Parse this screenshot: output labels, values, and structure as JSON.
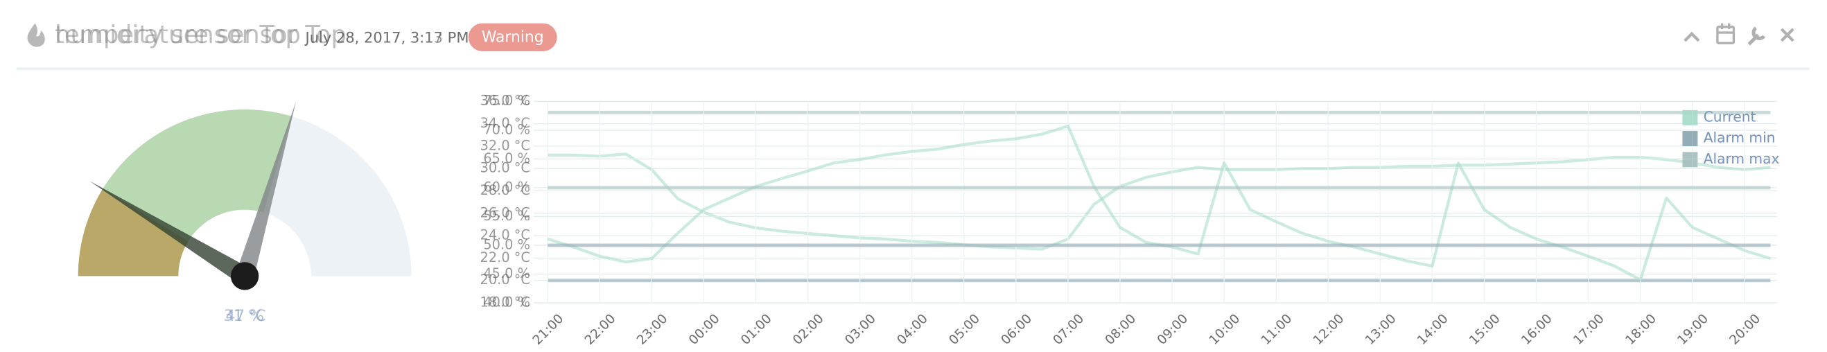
{
  "header": {
    "titles": [
      "temperature sensor Top",
      "humidity sensor Top"
    ],
    "timestamps": [
      "July 28, 2017, 3:17 PM",
      "July 28, 2017, 3:13 PM"
    ],
    "status": "Warning"
  },
  "chart_data": [
    {
      "type": "gauge",
      "values": [
        31
      ],
      "value_labels": [
        "31 °C"
      ],
      "ylim": [
        18,
        40
      ],
      "color": "#b6d7ae",
      "background_color": "#edf2f6",
      "needle_color": "#7f8587"
    },
    {
      "type": "gauge",
      "values": [
        47
      ],
      "value_labels": [
        "47 %"
      ],
      "ylim": [
        40,
        80
      ],
      "color": "#b8a563",
      "background_color": "#edf2f6",
      "needle_color": "#324232"
    },
    {
      "type": "line",
      "categories": [
        "21:00",
        null,
        "22:00",
        null,
        "23:00",
        null,
        "00:00",
        null,
        "01:00",
        null,
        "02:00",
        null,
        "03:00",
        null,
        "04:00",
        null,
        "05:00",
        null,
        "06:00",
        null,
        "07:00",
        null,
        "08:00",
        null,
        "09:00",
        null,
        "10:00",
        null,
        "11:00",
        null,
        "12:00",
        null,
        "13:00",
        null,
        "14:00",
        null,
        "15:00",
        null,
        "16:00",
        null,
        "17:00",
        null,
        "18:00",
        null,
        "19:00",
        null,
        "20:00",
        null
      ],
      "series": [
        {
          "name": "Current",
          "color": "#a9dccb",
          "values": [
            31.2,
            31.2,
            31.1,
            31.3,
            29.9,
            27.3,
            26.1,
            25.2,
            24.7,
            24.4,
            24.2,
            24.0,
            23.8,
            23.7,
            23.5,
            23.4,
            23.2,
            23.0,
            22.9,
            22.8,
            23.7,
            26.8,
            28.4,
            29.2,
            29.7,
            30.1,
            29.9,
            29.9,
            29.9,
            30.0,
            30.0,
            30.1,
            30.1,
            30.2,
            30.2,
            30.3,
            30.3,
            30.4,
            30.5,
            30.6,
            30.8,
            31.0,
            31.0,
            30.8,
            30.5,
            30.1,
            29.9,
            30.1
          ]
        },
        {
          "name": "Alarm min",
          "color": "#8fa9b2",
          "values": [
            20,
            20,
            20,
            20,
            20,
            20,
            20,
            20,
            20,
            20,
            20,
            20,
            20,
            20,
            20,
            20,
            20,
            20,
            20,
            20,
            20,
            20,
            20,
            20,
            20,
            20,
            20,
            20,
            20,
            20,
            20,
            20,
            20,
            20,
            20,
            20,
            20,
            20,
            20,
            20,
            20,
            20,
            20,
            20,
            20,
            20,
            20,
            20
          ]
        },
        {
          "name": "Alarm max",
          "color": "#a7c1c0",
          "values": [
            35,
            35,
            35,
            35,
            35,
            35,
            35,
            35,
            35,
            35,
            35,
            35,
            35,
            35,
            35,
            35,
            35,
            35,
            35,
            35,
            35,
            35,
            35,
            35,
            35,
            35,
            35,
            35,
            35,
            35,
            35,
            35,
            35,
            35,
            35,
            35,
            35,
            35,
            35,
            35,
            35,
            35,
            35,
            35,
            35,
            35,
            35,
            35
          ]
        }
      ],
      "ylim": [
        18,
        36
      ],
      "yticks": [
        {
          "value": 18,
          "label": "18.0 °C"
        },
        {
          "value": 20,
          "label": "20.0 °C"
        },
        {
          "value": 22,
          "label": "22.0 °C"
        },
        {
          "value": 24,
          "label": "24.0 °C"
        },
        {
          "value": 26,
          "label": "26.0 °C"
        },
        {
          "value": 28,
          "label": "28.0 °C"
        },
        {
          "value": 30,
          "label": "30.0 °C"
        },
        {
          "value": 32,
          "label": "32.0 °C"
        },
        {
          "value": 34,
          "label": "34.0 °C"
        },
        {
          "value": 36,
          "label": "36.0 °C"
        }
      ],
      "grid": true,
      "legend": "top-right"
    },
    {
      "type": "line",
      "categories": [
        "21:00",
        null,
        "22:00",
        null,
        "23:00",
        null,
        "00:00",
        null,
        "01:00",
        null,
        "02:00",
        null,
        "03:00",
        null,
        "04:00",
        null,
        "05:00",
        null,
        "06:00",
        null,
        "07:00",
        null,
        "08:00",
        null,
        "09:00",
        null,
        "10:00",
        null,
        "11:00",
        null,
        "12:00",
        null,
        "13:00",
        null,
        "14:00",
        null,
        "15:00",
        null,
        "16:00",
        null,
        "17:00",
        null,
        "18:00",
        null,
        "19:00",
        null,
        "20:00",
        null
      ],
      "series": [
        {
          "name": "Current",
          "color": "#a9dccb",
          "values": [
            51.1,
            49.7,
            48.1,
            47.1,
            47.7,
            52.1,
            56.2,
            58.2,
            60.2,
            61.6,
            62.9,
            64.3,
            64.9,
            65.7,
            66.3,
            66.7,
            67.5,
            68.1,
            68.5,
            69.3,
            70.7,
            60.2,
            53.1,
            50.5,
            49.7,
            48.5,
            64.3,
            56.2,
            54.1,
            52.1,
            50.7,
            49.7,
            48.5,
            47.3,
            46.4,
            64.3,
            56.2,
            53.1,
            51.1,
            49.7,
            48.1,
            46.4,
            44.0,
            58.2,
            53.1,
            51.1,
            49.1,
            47.7
          ]
        },
        {
          "name": "Alarm min",
          "color": "#8fa9b2",
          "values": [
            50,
            50,
            50,
            50,
            50,
            50,
            50,
            50,
            50,
            50,
            50,
            50,
            50,
            50,
            50,
            50,
            50,
            50,
            50,
            50,
            50,
            50,
            50,
            50,
            50,
            50,
            50,
            50,
            50,
            50,
            50,
            50,
            50,
            50,
            50,
            50,
            50,
            50,
            50,
            50,
            50,
            50,
            50,
            50,
            50,
            50,
            50,
            50
          ]
        },
        {
          "name": "Alarm max",
          "color": "#a7c1c0",
          "values": [
            60,
            60,
            60,
            60,
            60,
            60,
            60,
            60,
            60,
            60,
            60,
            60,
            60,
            60,
            60,
            60,
            60,
            60,
            60,
            60,
            60,
            60,
            60,
            60,
            60,
            60,
            60,
            60,
            60,
            60,
            60,
            60,
            60,
            60,
            60,
            60,
            60,
            60,
            60,
            60,
            60,
            60,
            60,
            60,
            60,
            60,
            60,
            60
          ]
        }
      ],
      "ylim": [
        40,
        75
      ],
      "yticks": [
        {
          "value": 40,
          "label": "40.0 %"
        },
        {
          "value": 45,
          "label": "45.0 %"
        },
        {
          "value": 50,
          "label": "50.0 %"
        },
        {
          "value": 55,
          "label": "55.0 %"
        },
        {
          "value": 60,
          "label": "60.0 %"
        },
        {
          "value": 65,
          "label": "65.0 %"
        },
        {
          "value": 70,
          "label": "70.0 %"
        },
        {
          "value": 75,
          "label": "75.0 %"
        }
      ],
      "grid": true,
      "legend": "top-right"
    }
  ]
}
